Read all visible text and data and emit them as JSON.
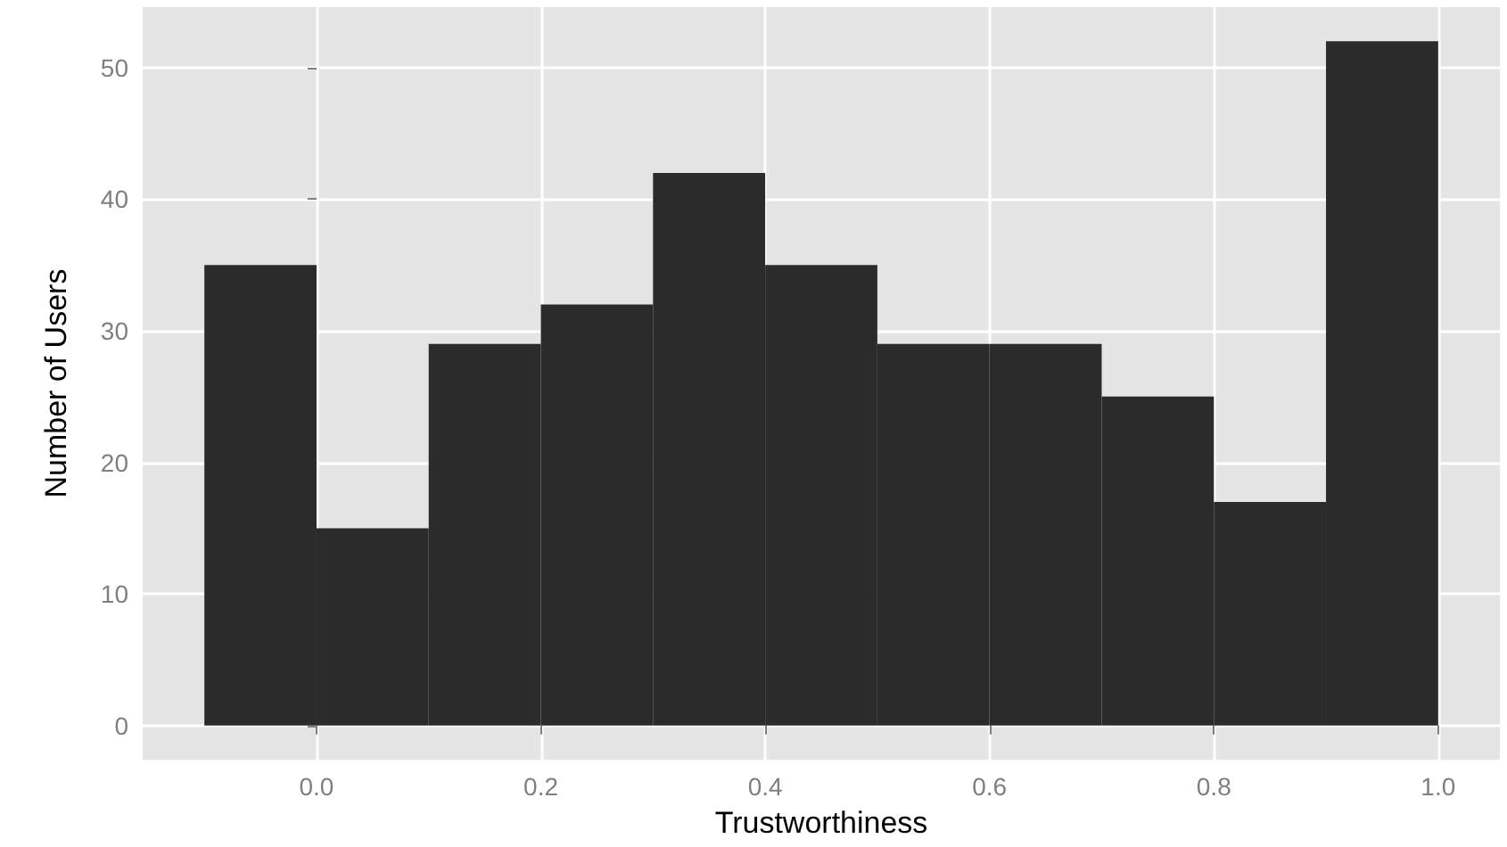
{
  "chart_data": {
    "type": "histogram",
    "xlabel": "Trustworthiness",
    "ylabel": "Number of Users",
    "bins": [
      -0.1,
      0.0,
      0.1,
      0.2,
      0.3,
      0.4,
      0.5,
      0.6,
      0.7,
      0.8,
      0.9,
      1.0
    ],
    "values": [
      35,
      15,
      29,
      32,
      42,
      35,
      29,
      29,
      25,
      17,
      52
    ],
    "color": "#2b2b2b",
    "xlim": [
      -0.155,
      1.055
    ],
    "xticks": [
      {
        "value": 0,
        "label": "0.0"
      },
      {
        "value": 0.2,
        "label": "0.2"
      },
      {
        "value": 0.4,
        "label": "0.4"
      },
      {
        "value": 0.6,
        "label": "0.6"
      },
      {
        "value": 0.8,
        "label": "0.8"
      },
      {
        "value": 1,
        "label": "1.0"
      }
    ],
    "ylim": [
      -2.6,
      54.6
    ],
    "yticks": [
      0,
      10,
      20,
      30,
      40,
      50
    ],
    "grid": true
  }
}
